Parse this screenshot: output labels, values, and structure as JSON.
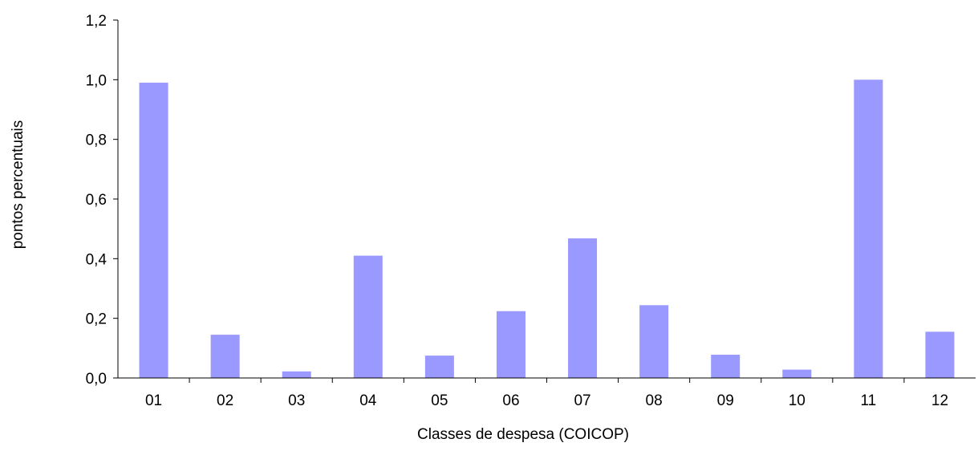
{
  "chart_data": {
    "type": "bar",
    "title": "",
    "xlabel": "Classes de despesa (COICOP)",
    "ylabel": "pontos percentuais",
    "categories": [
      "01",
      "02",
      "03",
      "04",
      "05",
      "06",
      "07",
      "08",
      "09",
      "10",
      "11",
      "12"
    ],
    "values": [
      0.99,
      0.145,
      0.022,
      0.41,
      0.075,
      0.224,
      0.468,
      0.244,
      0.078,
      0.028,
      1.0,
      0.155
    ],
    "ylim": [
      0,
      1.2
    ],
    "yticks": [
      "0,0",
      "0,2",
      "0,4",
      "0,6",
      "0,8",
      "1,0",
      "1,2"
    ],
    "grid": false,
    "legend": "none",
    "bar_color": "#9999ff",
    "axis_color": "#000000"
  }
}
